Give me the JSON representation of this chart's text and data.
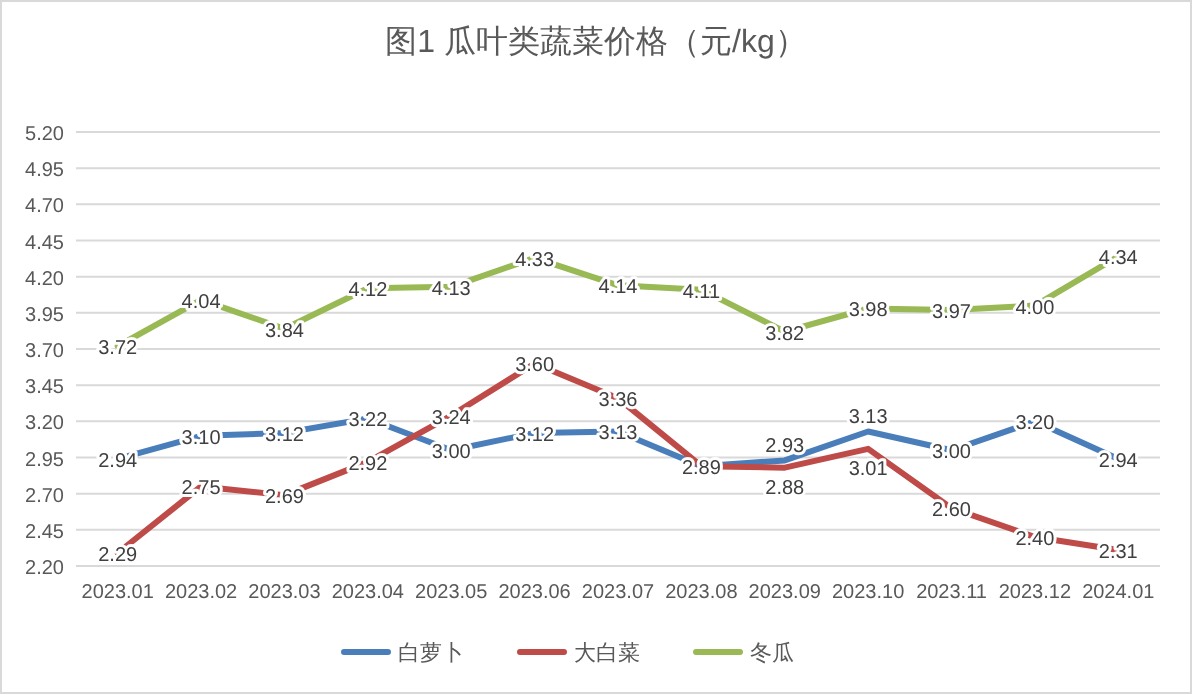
{
  "chart_data": {
    "type": "line",
    "title": "图1  瓜叶类蔬菜价格（元/kg）",
    "categories": [
      "2023.01",
      "2023.02",
      "2023.03",
      "2023.04",
      "2023.05",
      "2023.06",
      "2023.07",
      "2023.08",
      "2023.09",
      "2023.10",
      "2023.11",
      "2023.12",
      "2024.01"
    ],
    "series": [
      {
        "name": "白萝卜",
        "color": "#4a7ebb",
        "values": [
          2.94,
          3.1,
          3.12,
          3.22,
          3.0,
          3.12,
          3.13,
          2.89,
          2.93,
          3.13,
          3.0,
          3.2,
          2.94
        ],
        "value_labels": [
          "2.94",
          "3.10",
          "3.12",
          "3.22",
          "3.00",
          "3.12",
          "3.13",
          null,
          "2.93",
          "3.13",
          "3.00",
          "3.20",
          "2.94"
        ]
      },
      {
        "name": "大白菜",
        "color": "#be4b48",
        "values": [
          2.29,
          2.75,
          2.69,
          2.92,
          3.24,
          3.6,
          3.36,
          2.89,
          2.88,
          3.01,
          2.6,
          2.4,
          2.31
        ],
        "value_labels": [
          "2.29",
          "2.75",
          "2.69",
          "2.92",
          "3.24",
          "3.60",
          "3.36",
          "2.89",
          "2.88",
          "3.01",
          "2.60",
          "2.40",
          "2.31"
        ]
      },
      {
        "name": "冬瓜",
        "color": "#98b954",
        "values": [
          3.72,
          4.04,
          3.84,
          4.12,
          4.13,
          4.33,
          4.14,
          4.11,
          3.82,
          3.98,
          3.97,
          4.0,
          4.34
        ],
        "value_labels": [
          "3.72",
          "4.04",
          "3.84",
          "4.12",
          "4.13",
          "4.33",
          "4.14",
          "4.11",
          "3.82",
          "3.98",
          "3.97",
          "4.00",
          "4.34"
        ]
      }
    ],
    "ylim": [
      2.2,
      5.2
    ],
    "yticks": [
      {
        "value": 2.2,
        "label": "2.20"
      },
      {
        "value": 2.45,
        "label": "2.45"
      },
      {
        "value": 2.7,
        "label": "2.70"
      },
      {
        "value": 2.95,
        "label": "2.95"
      },
      {
        "value": 3.2,
        "label": "3.20"
      },
      {
        "value": 3.45,
        "label": "3.45"
      },
      {
        "value": 3.7,
        "label": "3.70"
      },
      {
        "value": 3.95,
        "label": "3.95"
      },
      {
        "value": 4.2,
        "label": "4.20"
      },
      {
        "value": 4.45,
        "label": "4.45"
      },
      {
        "value": 4.7,
        "label": "4.70"
      },
      {
        "value": 4.95,
        "label": "4.95"
      },
      {
        "value": 5.2,
        "label": "5.20"
      }
    ],
    "grid": "y",
    "legend": "bottom",
    "marker": "none",
    "line_style": "solid"
  }
}
